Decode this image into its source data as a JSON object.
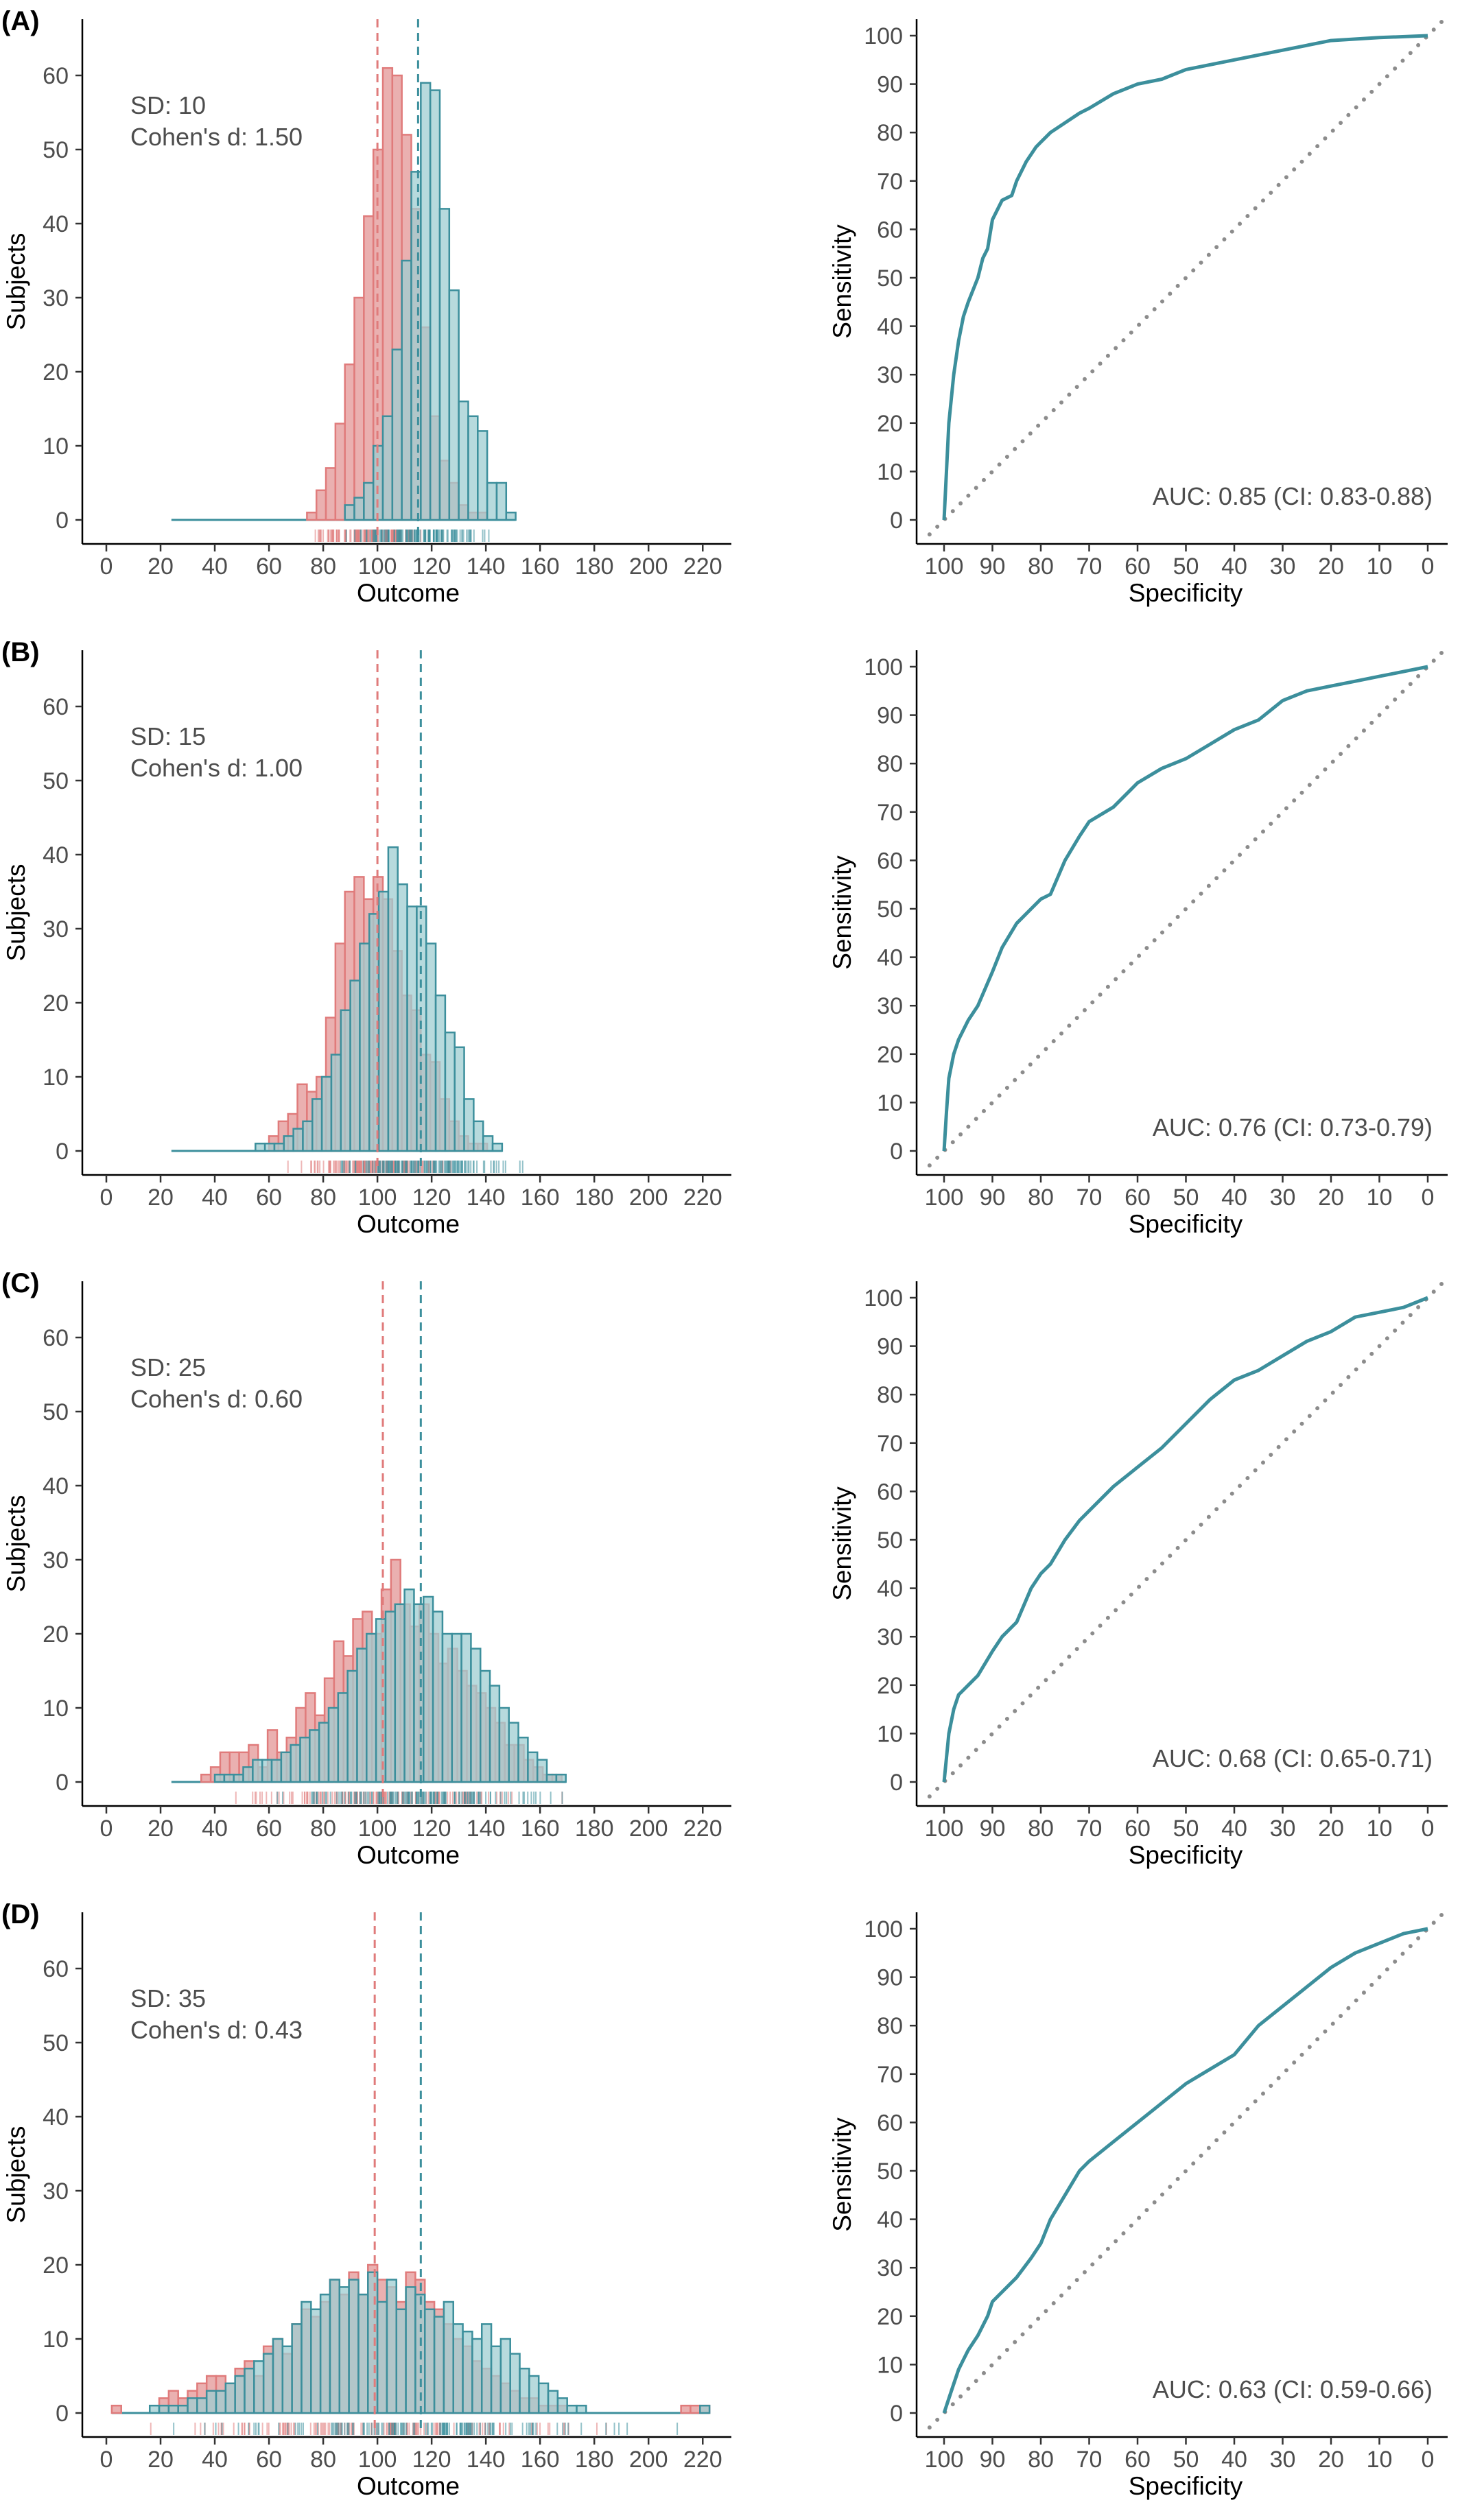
{
  "colors": {
    "group1": "#e07b7b",
    "group1_fill": "#eab0b0",
    "group2": "#3c8f9c",
    "group2_fill": "#9fcdd2",
    "overlap_fill": "#6ea2ab",
    "diagonal": "#8c8c8c"
  },
  "chart_data": [
    {
      "panel": "(A)",
      "type": "bar",
      "xlabel": "Outcome",
      "ylabel": "Subjects",
      "xlim": [
        0,
        225
      ],
      "ylim": [
        0,
        65
      ],
      "xticks": [
        0,
        20,
        40,
        60,
        80,
        100,
        120,
        140,
        160,
        180,
        200,
        220
      ],
      "yticks": [
        0,
        10,
        20,
        30,
        40,
        50,
        60
      ],
      "bin_width": 3.5,
      "annotation": [
        "SD: 10",
        "Cohen's d: 1.50"
      ],
      "mean_lines": [
        100,
        115
      ],
      "flat_line_start": 24,
      "series": [
        {
          "name": "",
          "bin_start": 74,
          "values": [
            1,
            4,
            7,
            13,
            21,
            30,
            41,
            50,
            61,
            60,
            52,
            42,
            26,
            14,
            8,
            5,
            2,
            1,
            1
          ]
        },
        {
          "name": "",
          "bin_start": 88,
          "values": [
            2,
            3,
            5,
            10,
            14,
            23,
            35,
            47,
            59,
            58,
            42,
            31,
            16,
            14,
            12,
            5,
            5,
            1
          ]
        }
      ]
    },
    {
      "panel": "",
      "type": "line",
      "xlabel": "Specificity",
      "ylabel": "Sensitivity",
      "xlim": [
        100,
        0
      ],
      "ylim": [
        0,
        100
      ],
      "xticks": [
        100,
        90,
        80,
        70,
        60,
        50,
        40,
        30,
        20,
        10,
        0
      ],
      "yticks": [
        0,
        10,
        20,
        30,
        40,
        50,
        60,
        70,
        80,
        90,
        100
      ],
      "annotation": "AUC: 0.85 (CI: 0.83-0.88)",
      "series": [
        {
          "name": "",
          "x": [
            100,
            99.5,
            99,
            98,
            97,
            96,
            95,
            93,
            92,
            91,
            90,
            88,
            86,
            85,
            83,
            81,
            80,
            78,
            75,
            72,
            70,
            65,
            60,
            55,
            50,
            40,
            30,
            20,
            10,
            0
          ],
          "y": [
            0,
            10,
            20,
            30,
            37,
            42,
            45,
            50,
            54,
            56,
            62,
            66,
            67,
            70,
            74,
            77,
            78,
            80,
            82,
            84,
            85,
            88,
            90,
            91,
            93,
            95,
            97,
            99,
            99.6,
            100
          ]
        }
      ]
    },
    {
      "panel": "(B)",
      "type": "bar",
      "xlabel": "Outcome",
      "ylabel": "Subjects",
      "xlim": [
        0,
        225
      ],
      "ylim": [
        0,
        65
      ],
      "xticks": [
        0,
        20,
        40,
        60,
        80,
        100,
        120,
        140,
        160,
        180,
        200,
        220
      ],
      "yticks": [
        0,
        10,
        20,
        30,
        40,
        50,
        60
      ],
      "bin_width": 3.5,
      "annotation": [
        "SD: 15",
        "Cohen's d: 1.00"
      ],
      "mean_lines": [
        100,
        116
      ],
      "flat_line_start": 24,
      "series": [
        {
          "name": "",
          "bin_start": 60,
          "values": [
            2,
            4,
            5,
            9,
            8,
            10,
            18,
            28,
            35,
            37,
            34,
            37,
            34,
            27,
            21,
            19,
            13,
            12,
            7,
            4,
            2,
            1,
            1
          ]
        },
        {
          "name": "",
          "bin_start": 55,
          "values": [
            1,
            1,
            1,
            2,
            3,
            4,
            7,
            10,
            13,
            19,
            23,
            28,
            32,
            35,
            41,
            36,
            33,
            33,
            28,
            21,
            16,
            14,
            7,
            4,
            2,
            1
          ]
        }
      ]
    },
    {
      "panel": "",
      "type": "line",
      "xlabel": "Specificity",
      "ylabel": "Sensitivity",
      "xlim": [
        100,
        0
      ],
      "ylim": [
        0,
        100
      ],
      "xticks": [
        100,
        90,
        80,
        70,
        60,
        50,
        40,
        30,
        20,
        10,
        0
      ],
      "yticks": [
        0,
        10,
        20,
        30,
        40,
        50,
        60,
        70,
        80,
        90,
        100
      ],
      "annotation": "AUC: 0.76 (CI: 0.73-0.79)",
      "series": [
        {
          "name": "",
          "x": [
            100,
            99.5,
            99,
            98,
            97,
            95,
            93,
            90,
            88,
            85,
            82,
            80,
            78,
            75,
            72,
            70,
            65,
            60,
            55,
            50,
            45,
            40,
            35,
            30,
            25,
            20,
            15,
            10,
            5,
            0
          ],
          "y": [
            0,
            8,
            15,
            20,
            23,
            27,
            30,
            37,
            42,
            47,
            50,
            52,
            53,
            60,
            65,
            68,
            71,
            76,
            79,
            81,
            84,
            87,
            89,
            93,
            95,
            96,
            97,
            98,
            99,
            100
          ]
        }
      ]
    },
    {
      "panel": "(C)",
      "type": "bar",
      "xlabel": "Outcome",
      "ylabel": "Subjects",
      "xlim": [
        0,
        225
      ],
      "ylim": [
        0,
        65
      ],
      "xticks": [
        0,
        20,
        40,
        60,
        80,
        100,
        120,
        140,
        160,
        180,
        200,
        220
      ],
      "yticks": [
        0,
        10,
        20,
        30,
        40,
        50,
        60
      ],
      "bin_width": 3.5,
      "annotation": [
        "SD: 25",
        "Cohen's d: 0.60"
      ],
      "mean_lines": [
        102,
        116
      ],
      "flat_line_start": 24,
      "series": [
        {
          "name": "",
          "bin_start": 35,
          "values": [
            1,
            2,
            4,
            4,
            4,
            5,
            2,
            7,
            4,
            6,
            10,
            12,
            9,
            14,
            19,
            17,
            22,
            23,
            20,
            26,
            30,
            24,
            21,
            24,
            20,
            16,
            18,
            15,
            13,
            12,
            10,
            8,
            5,
            5,
            3,
            2,
            1,
            1
          ]
        },
        {
          "name": "",
          "bin_start": 40,
          "values": [
            1,
            1,
            1,
            2,
            3,
            3,
            3,
            4,
            5,
            6,
            7,
            8,
            10,
            12,
            15,
            18,
            20,
            22,
            23,
            24,
            26,
            24,
            25,
            23,
            20,
            20,
            20,
            18,
            15,
            13,
            10,
            8,
            6,
            4,
            3,
            1,
            1
          ]
        }
      ]
    },
    {
      "panel": "",
      "type": "line",
      "xlabel": "Specificity",
      "ylabel": "Sensitivity",
      "xlim": [
        100,
        0
      ],
      "ylim": [
        0,
        100
      ],
      "xticks": [
        100,
        90,
        80,
        70,
        60,
        50,
        40,
        30,
        20,
        10,
        0
      ],
      "yticks": [
        0,
        10,
        20,
        30,
        40,
        50,
        60,
        70,
        80,
        90,
        100
      ],
      "annotation": "AUC: 0.68 (CI: 0.65-0.71)",
      "series": [
        {
          "name": "",
          "x": [
            100,
            99.5,
            99,
            98,
            97,
            95,
            93,
            90,
            88,
            85,
            82,
            80,
            78,
            75,
            72,
            70,
            65,
            60,
            55,
            50,
            45,
            40,
            35,
            30,
            25,
            20,
            15,
            10,
            5,
            0
          ],
          "y": [
            0,
            5,
            10,
            15,
            18,
            20,
            22,
            27,
            30,
            33,
            40,
            43,
            45,
            50,
            54,
            56,
            61,
            65,
            69,
            74,
            79,
            83,
            85,
            88,
            91,
            93,
            96,
            97,
            98,
            100
          ]
        }
      ]
    },
    {
      "panel": "(D)",
      "type": "bar",
      "xlabel": "Outcome",
      "ylabel": "Subjects",
      "xlim": [
        0,
        225
      ],
      "ylim": [
        0,
        65
      ],
      "xticks": [
        0,
        20,
        40,
        60,
        80,
        100,
        120,
        140,
        160,
        180,
        200,
        220
      ],
      "yticks": [
        0,
        10,
        20,
        30,
        40,
        50,
        60
      ],
      "bin_width": 3.5,
      "annotation": [
        "SD: 35",
        "Cohen's d: 0.43"
      ],
      "mean_lines": [
        99,
        116
      ],
      "flat_line_start": 2,
      "series": [
        {
          "name": "",
          "bin_start": 2,
          "values": [
            1,
            0,
            0,
            0,
            0,
            2,
            3,
            2,
            3,
            4,
            5,
            5,
            4,
            6,
            7,
            5,
            9,
            10,
            8,
            12,
            14,
            13,
            15,
            18,
            16,
            19,
            16,
            20,
            18,
            17,
            15,
            19,
            18,
            15,
            14,
            12,
            10,
            9,
            7,
            6,
            5,
            4,
            3,
            2,
            2,
            1,
            1,
            1,
            0,
            0,
            0,
            0,
            0,
            0,
            0,
            0,
            0,
            0,
            0,
            0,
            1,
            1,
            1
          ]
        },
        {
          "name": "",
          "bin_start": 16,
          "values": [
            1,
            1,
            1,
            1,
            2,
            2,
            3,
            3,
            4,
            5,
            6,
            7,
            8,
            10,
            9,
            12,
            15,
            14,
            16,
            18,
            17,
            18,
            16,
            19,
            15,
            18,
            14,
            17,
            16,
            14,
            13,
            15,
            12,
            11,
            10,
            12,
            9,
            10,
            8,
            6,
            5,
            4,
            3,
            2,
            1,
            1,
            0,
            0,
            0,
            0,
            0,
            0,
            0,
            0,
            0,
            0,
            0,
            0,
            1
          ]
        }
      ]
    },
    {
      "panel": "",
      "type": "line",
      "xlabel": "Specificity",
      "ylabel": "Sensitivity",
      "xlim": [
        100,
        0
      ],
      "ylim": [
        0,
        100
      ],
      "xticks": [
        100,
        90,
        80,
        70,
        60,
        50,
        40,
        30,
        20,
        10,
        0
      ],
      "yticks": [
        0,
        10,
        20,
        30,
        40,
        50,
        60,
        70,
        80,
        90,
        100
      ],
      "annotation": "AUC: 0.63 (CI: 0.59-0.66)",
      "series": [
        {
          "name": "",
          "x": [
            100,
            99,
            98,
            97,
            96,
            95,
            93,
            91,
            90,
            88,
            85,
            82,
            80,
            78,
            75,
            72,
            70,
            65,
            60,
            55,
            50,
            45,
            40,
            35,
            30,
            25,
            20,
            15,
            10,
            5,
            0
          ],
          "y": [
            0,
            3,
            6,
            9,
            11,
            13,
            16,
            20,
            23,
            25,
            28,
            32,
            35,
            40,
            45,
            50,
            52,
            56,
            60,
            64,
            68,
            71,
            74,
            80,
            84,
            88,
            92,
            95,
            97,
            99,
            100
          ]
        }
      ]
    }
  ]
}
